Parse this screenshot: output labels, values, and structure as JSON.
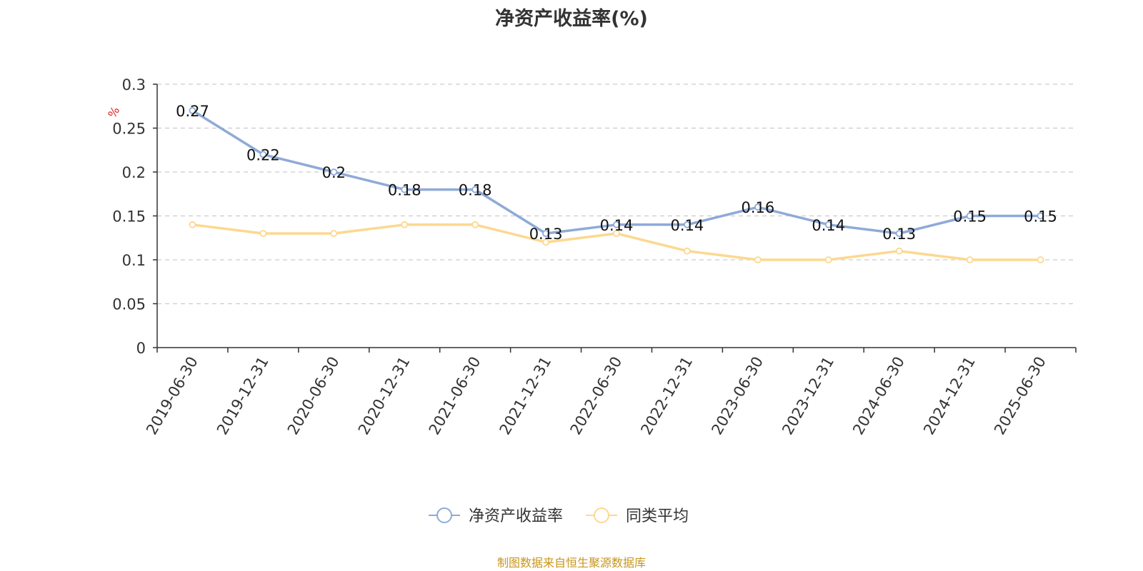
{
  "title": "净资产收益率(%)",
  "source": "制图数据来自恒生聚源数据库",
  "colors": {
    "primary": "#8eaad8",
    "average": "#fcd890",
    "grid": "#cccccc",
    "axis": "#333333",
    "unit": "#e02020",
    "source": "#c9961a"
  },
  "chart_data": {
    "type": "line",
    "title": "净资产收益率(%)",
    "ylabel": "%",
    "xlabel": "",
    "ylim": [
      0,
      0.3
    ],
    "y_ticks": [
      "0",
      "0.05",
      "0.1",
      "0.15",
      "0.2",
      "0.25",
      "0.3"
    ],
    "categories": [
      "2019-06-30",
      "2019-12-31",
      "2020-06-30",
      "2020-12-31",
      "2021-06-30",
      "2021-12-31",
      "2022-06-30",
      "2022-12-31",
      "2023-06-30",
      "2023-12-31",
      "2024-06-30",
      "2024-12-31",
      "2025-06-30"
    ],
    "series": [
      {
        "name": "净资产收益率",
        "values": [
          0.27,
          0.22,
          0.2,
          0.18,
          0.18,
          0.13,
          0.14,
          0.14,
          0.16,
          0.14,
          0.13,
          0.15,
          0.15
        ],
        "labels": [
          "0.27",
          "0.22",
          "0.2",
          "0.18",
          "0.18",
          "0.13",
          "0.14",
          "0.14",
          "0.16",
          "0.14",
          "0.13",
          "0.15",
          "0.15"
        ]
      },
      {
        "name": "同类平均",
        "values": [
          0.14,
          0.13,
          0.13,
          0.14,
          0.14,
          0.12,
          0.13,
          0.11,
          0.1,
          0.1,
          0.11,
          0.1,
          0.1
        ]
      }
    ],
    "grid": "dashed horizontal",
    "legend": "bottom-center"
  }
}
